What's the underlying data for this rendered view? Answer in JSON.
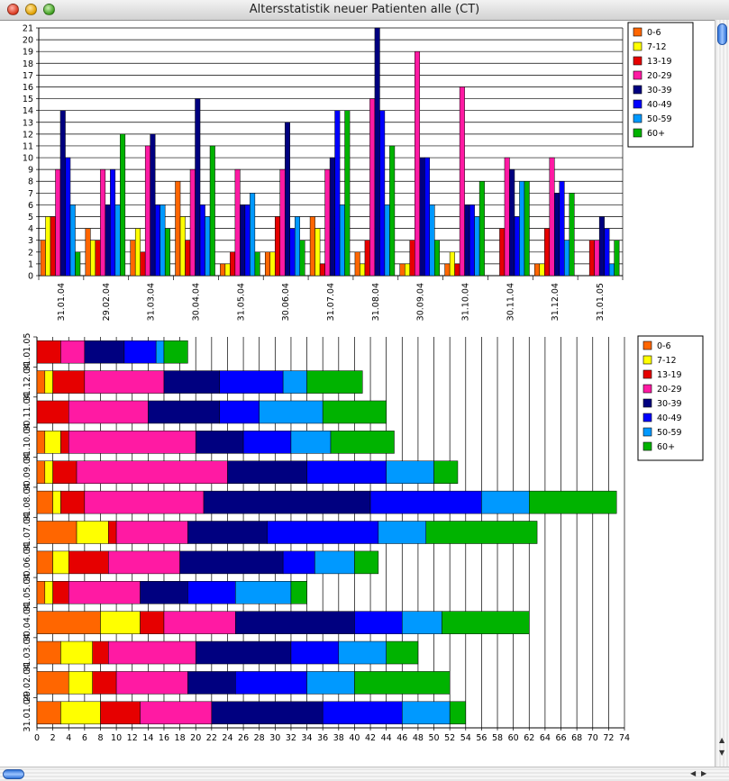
{
  "window": {
    "title": "Altersstatistik neuer Patienten alle (CT)"
  },
  "colors": [
    "#ff6600",
    "#ffff00",
    "#e60000",
    "#ff1aa3",
    "#000080",
    "#0000ff",
    "#0099ff",
    "#00b300"
  ],
  "chart_data": [
    {
      "type": "bar",
      "orientation": "vertical",
      "categories": [
        "31.01.04",
        "29.02.04",
        "31.03.04",
        "30.04.04",
        "31.05.04",
        "30.06.04",
        "31.07.04",
        "31.08.04",
        "30.09.04",
        "31.10.04",
        "30.11.04",
        "31.12.04",
        "31.01.05"
      ],
      "ylim": [
        0,
        21
      ],
      "yticks": [
        "0",
        "1",
        "2",
        "3",
        "4",
        "5",
        "6",
        "7",
        "8",
        "9",
        "10",
        "11",
        "12",
        "13",
        "14",
        "15",
        "16",
        "17",
        "18",
        "19",
        "20",
        "21"
      ],
      "grid": "horizontal",
      "legend": "top-right",
      "series": [
        {
          "name": "0-6",
          "values": [
            3,
            4,
            3,
            8,
            1,
            2,
            5,
            2,
            1,
            1,
            0,
            1,
            0
          ]
        },
        {
          "name": "7-12",
          "values": [
            5,
            3,
            4,
            5,
            1,
            2,
            4,
            1,
            1,
            2,
            0,
            1,
            0
          ]
        },
        {
          "name": "13-19",
          "values": [
            5,
            3,
            2,
            3,
            2,
            5,
            1,
            3,
            3,
            1,
            4,
            4,
            3
          ]
        },
        {
          "name": "20-29",
          "values": [
            9,
            9,
            11,
            9,
            9,
            9,
            9,
            15,
            19,
            16,
            10,
            10,
            3
          ]
        },
        {
          "name": "30-39",
          "values": [
            14,
            6,
            12,
            15,
            6,
            13,
            10,
            21,
            10,
            6,
            9,
            7,
            5
          ]
        },
        {
          "name": "40-49",
          "values": [
            10,
            9,
            6,
            6,
            6,
            4,
            14,
            14,
            10,
            6,
            5,
            8,
            4
          ]
        },
        {
          "name": "50-59",
          "values": [
            6,
            6,
            6,
            5,
            7,
            5,
            6,
            6,
            6,
            5,
            8,
            3,
            1
          ]
        },
        {
          "name": "60+",
          "values": [
            2,
            12,
            4,
            11,
            2,
            3,
            14,
            11,
            3,
            8,
            8,
            7,
            3
          ]
        }
      ]
    },
    {
      "type": "bar",
      "orientation": "horizontal",
      "stacked": true,
      "categories": [
        "31.01.04",
        "29.02.04",
        "31.03.04",
        "30.04.04",
        "31.05.04",
        "30.06.04",
        "31.07.04",
        "31.08.04",
        "30.09.04",
        "31.10.04",
        "30.11.04",
        "31.12.04",
        "31.01.05"
      ],
      "xlim": [
        0,
        74
      ],
      "xticks": [
        "0",
        "2",
        "4",
        "6",
        "8",
        "10",
        "12",
        "14",
        "16",
        "18",
        "20",
        "22",
        "24",
        "26",
        "28",
        "30",
        "32",
        "34",
        "36",
        "38",
        "40",
        "42",
        "44",
        "46",
        "48",
        "50",
        "52",
        "54",
        "56",
        "58",
        "60",
        "62",
        "64",
        "66",
        "68",
        "70",
        "72",
        "74"
      ],
      "grid": "vertical",
      "legend": "top-right",
      "series": [
        {
          "name": "0-6",
          "values": [
            3,
            4,
            3,
            8,
            1,
            2,
            5,
            2,
            1,
            1,
            0,
            1,
            0
          ]
        },
        {
          "name": "7-12",
          "values": [
            5,
            3,
            4,
            5,
            1,
            2,
            4,
            1,
            1,
            2,
            0,
            1,
            0
          ]
        },
        {
          "name": "13-19",
          "values": [
            5,
            3,
            2,
            3,
            2,
            5,
            1,
            3,
            3,
            1,
            4,
            4,
            3
          ]
        },
        {
          "name": "20-29",
          "values": [
            9,
            9,
            11,
            9,
            9,
            9,
            9,
            15,
            19,
            16,
            10,
            10,
            3
          ]
        },
        {
          "name": "30-39",
          "values": [
            14,
            6,
            12,
            15,
            6,
            13,
            10,
            21,
            10,
            6,
            9,
            7,
            5
          ]
        },
        {
          "name": "40-49",
          "values": [
            10,
            9,
            6,
            6,
            6,
            4,
            14,
            14,
            10,
            6,
            5,
            8,
            4
          ]
        },
        {
          "name": "50-59",
          "values": [
            6,
            6,
            6,
            5,
            7,
            5,
            6,
            6,
            6,
            5,
            8,
            3,
            1
          ]
        },
        {
          "name": "60+",
          "values": [
            2,
            12,
            4,
            11,
            2,
            3,
            14,
            11,
            3,
            8,
            8,
            7,
            3
          ]
        }
      ]
    }
  ]
}
